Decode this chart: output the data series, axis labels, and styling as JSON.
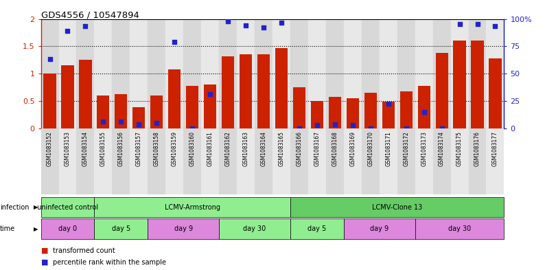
{
  "title": "GDS4556 / 10547894",
  "samples": [
    "GSM1083152",
    "GSM1083153",
    "GSM1083154",
    "GSM1083155",
    "GSM1083156",
    "GSM1083157",
    "GSM1083158",
    "GSM1083159",
    "GSM1083160",
    "GSM1083161",
    "GSM1083162",
    "GSM1083163",
    "GSM1083164",
    "GSM1083165",
    "GSM1083166",
    "GSM1083167",
    "GSM1083168",
    "GSM1083169",
    "GSM1083170",
    "GSM1083171",
    "GSM1083172",
    "GSM1083173",
    "GSM1083174",
    "GSM1083175",
    "GSM1083176",
    "GSM1083177"
  ],
  "red_values": [
    1.0,
    1.15,
    1.25,
    0.6,
    0.62,
    0.38,
    0.6,
    1.08,
    0.78,
    0.8,
    1.32,
    1.35,
    1.35,
    1.47,
    0.75,
    0.5,
    0.58,
    0.55,
    0.65,
    0.48,
    0.68,
    0.78,
    1.38,
    1.6,
    1.6,
    1.28
  ],
  "blue_values": [
    1.27,
    1.78,
    1.87,
    0.12,
    0.12,
    0.07,
    0.1,
    1.58,
    0.0,
    0.62,
    1.95,
    1.88,
    1.84,
    1.93,
    0.0,
    0.06,
    0.07,
    0.06,
    0.0,
    0.45,
    0.0,
    0.3,
    0.0,
    1.9,
    1.9,
    1.87
  ],
  "bar_color": "#cc2200",
  "dot_color": "#2222cc",
  "ylim_left": [
    0,
    2
  ],
  "ylim_right": [
    0,
    100
  ],
  "yticks_left": [
    0,
    0.5,
    1.0,
    1.5,
    2.0
  ],
  "yticks_right": [
    0,
    25,
    50,
    75,
    100
  ],
  "plot_bg_color": "#e8e8e8",
  "infection_groups": [
    {
      "label": "uninfected control",
      "start": 0,
      "end": 3,
      "color": "#90ee90"
    },
    {
      "label": "LCMV-Armstrong",
      "start": 3,
      "end": 14,
      "color": "#90ee90"
    },
    {
      "label": "LCMV-Clone 13",
      "start": 14,
      "end": 26,
      "color": "#66cc66"
    }
  ],
  "time_groups": [
    {
      "label": "day 0",
      "start": 0,
      "end": 3,
      "color": "#dd88dd"
    },
    {
      "label": "day 5",
      "start": 3,
      "end": 6,
      "color": "#90ee90"
    },
    {
      "label": "day 9",
      "start": 6,
      "end": 10,
      "color": "#dd88dd"
    },
    {
      "label": "day 30",
      "start": 10,
      "end": 14,
      "color": "#90ee90"
    },
    {
      "label": "day 5",
      "start": 14,
      "end": 17,
      "color": "#90ee90"
    },
    {
      "label": "day 9",
      "start": 17,
      "end": 21,
      "color": "#dd88dd"
    },
    {
      "label": "day 30",
      "start": 21,
      "end": 26,
      "color": "#dd88dd"
    }
  ],
  "legend_items": [
    {
      "label": "transformed count",
      "color": "#cc2200"
    },
    {
      "label": "percentile rank within the sample",
      "color": "#2222cc"
    }
  ],
  "col_colors": [
    "#d8d8d8",
    "#e8e8e8"
  ]
}
